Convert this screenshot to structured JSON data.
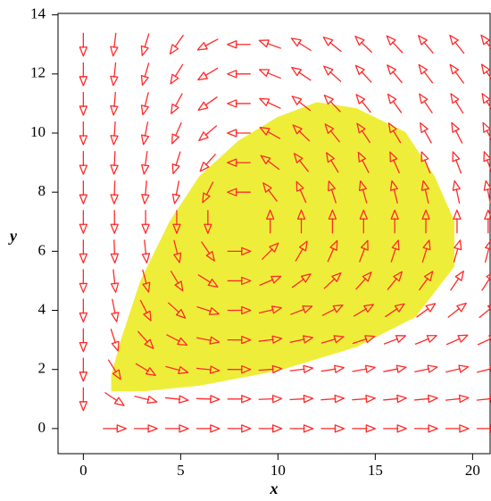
{
  "chart_data": {
    "type": "quiver",
    "xlabel": "x",
    "ylabel": "y",
    "xlim": [
      -1.3,
      20.9
    ],
    "ylim": [
      -0.85,
      14.05
    ],
    "xticks": [
      0,
      5,
      10,
      15,
      20
    ],
    "yticks": [
      0,
      2,
      4,
      6,
      8,
      10,
      12,
      14
    ],
    "field": {
      "color": "#ff2a2a",
      "x": [
        0,
        1.6,
        3.2,
        4.8,
        6.4,
        8,
        9.6,
        11.2,
        12.8,
        14.4,
        16,
        17.6,
        19.2,
        20.8
      ],
      "y": [
        0,
        1,
        2,
        3,
        4,
        5,
        6,
        7,
        8,
        9,
        10,
        11,
        12,
        13
      ],
      "angles": [
        [
          null,
          0,
          0,
          0,
          0,
          0,
          0,
          0,
          0,
          0,
          0,
          0,
          0,
          0
        ],
        [
          -90,
          -34,
          -14,
          -6,
          -2,
          0,
          2,
          3,
          4,
          4,
          5,
          5,
          6,
          6
        ],
        [
          -90,
          -58,
          -31,
          -15,
          -6,
          0,
          4,
          7,
          9,
          10,
          11,
          12,
          13,
          14
        ],
        [
          -90,
          -72,
          -48,
          -27,
          -11,
          0,
          7,
          12,
          16,
          18,
          21,
          22,
          24,
          25
        ],
        [
          -90,
          -79,
          -63,
          -42,
          -18,
          0,
          13,
          21,
          27,
          31,
          34,
          36,
          38,
          39
        ],
        [
          -90,
          -84,
          -75,
          -59,
          -32,
          0,
          23,
          36,
          43,
          48,
          51,
          54,
          56,
          57
        ],
        [
          -90,
          -88,
          -84,
          -76,
          -56,
          0,
          45,
          60,
          66,
          69,
          72,
          73,
          74,
          75
        ],
        [
          -90,
          -90,
          -90,
          -90,
          -90,
          null,
          90,
          90,
          90,
          90,
          90,
          90,
          90,
          90
        ],
        [
          -90,
          -92,
          -95,
          -101,
          -117,
          180,
          127,
          114,
          108,
          106,
          104,
          103,
          102,
          101
        ],
        [
          -90,
          -93,
          -98,
          -108,
          -132,
          180,
          143,
          128,
          121,
          117,
          114,
          112,
          111,
          110
        ],
        [
          -90,
          -94,
          -101,
          -114,
          -140,
          180,
          151,
          136,
          129,
          124,
          121,
          119,
          117,
          116
        ],
        [
          -90,
          -95,
          -104,
          -119,
          -145,
          180,
          155,
          142,
          134,
          129,
          126,
          124,
          122,
          121
        ],
        [
          -90,
          -96,
          -106,
          -122,
          -149,
          180,
          158,
          146,
          138,
          133,
          130,
          127,
          126,
          124
        ],
        [
          -90,
          -97,
          -107,
          -125,
          -152,
          180,
          160,
          148,
          141,
          136,
          133,
          130,
          128,
          127
        ]
      ]
    },
    "trajectory": {
      "color": "#eeee3a",
      "x": [
        1.5,
        3,
        6,
        10,
        14,
        17,
        19,
        19,
        18,
        16.5,
        14,
        12,
        10,
        8,
        6,
        4.5,
        3,
        2,
        1.5
      ],
      "y": [
        1.3,
        1.3,
        1.5,
        2,
        2.8,
        3.8,
        5.5,
        7,
        8.5,
        10,
        10.8,
        11,
        10.5,
        9.7,
        8.5,
        7,
        5,
        3,
        1.8
      ]
    }
  }
}
